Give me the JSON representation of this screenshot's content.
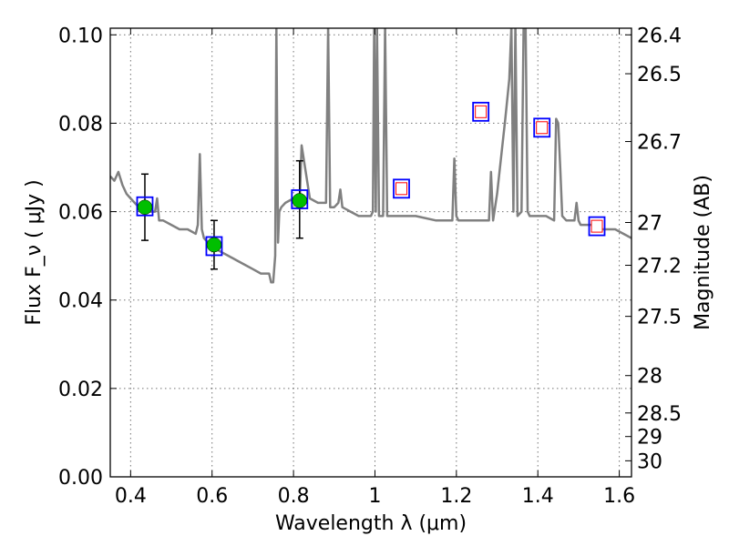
{
  "chart_data": {
    "type": "scatter",
    "xlabel": "Wavelength  λ (μm)",
    "ylabel": "Flux  F_ν  ( μJy )",
    "y2label": "Magnitude (AB)",
    "xlim": [
      0.35,
      1.63
    ],
    "ylim": [
      0.0,
      0.1015
    ],
    "grid": true,
    "x_ticks": [
      0.4,
      0.6,
      0.8,
      1.0,
      1.2,
      1.4,
      1.6
    ],
    "x_tick_labels": [
      "0.4",
      "0.6",
      "0.8",
      "1",
      "1.2",
      "1.4",
      "1.6"
    ],
    "y_ticks": [
      0.0,
      0.02,
      0.04,
      0.06,
      0.08,
      0.1
    ],
    "y_tick_labels": [
      "0.00",
      "0.02",
      "0.04",
      "0.06",
      "0.08",
      "0.10"
    ],
    "y2_ticks": [
      26.4,
      26.5,
      26.7,
      27,
      27.2,
      27.5,
      28,
      28.5,
      29,
      30
    ],
    "y2_tick_labels": [
      "26.4",
      "26.5",
      "26.7",
      "27",
      "27.2",
      "27.5",
      "28",
      "28.5",
      "29",
      "30"
    ],
    "series": [
      {
        "type": "line",
        "color": "#808080",
        "x": [
          0.35,
          0.36,
          0.37,
          0.38,
          0.39,
          0.4,
          0.41,
          0.42,
          0.43,
          0.44,
          0.45,
          0.46,
          0.465,
          0.47,
          0.48,
          0.5,
          0.52,
          0.54,
          0.56,
          0.565,
          0.57,
          0.575,
          0.58,
          0.6,
          0.62,
          0.64,
          0.66,
          0.68,
          0.7,
          0.72,
          0.74,
          0.745,
          0.75,
          0.755,
          0.758,
          0.762,
          0.765,
          0.77,
          0.78,
          0.8,
          0.815,
          0.82,
          0.84,
          0.86,
          0.88,
          0.885,
          0.89,
          0.9,
          0.91,
          0.915,
          0.92,
          0.94,
          0.96,
          0.98,
          0.99,
          0.995,
          0.998,
          1.002,
          1.005,
          1.01,
          1.02,
          1.025,
          1.03,
          1.06,
          1.1,
          1.15,
          1.19,
          1.195,
          1.2,
          1.205,
          1.22,
          1.26,
          1.28,
          1.285,
          1.29,
          1.3,
          1.32,
          1.33,
          1.335,
          1.34,
          1.345,
          1.35,
          1.36,
          1.365,
          1.37,
          1.375,
          1.38,
          1.4,
          1.42,
          1.44,
          1.445,
          1.45,
          1.455,
          1.46,
          1.47,
          1.48,
          1.49,
          1.495,
          1.5,
          1.505,
          1.51,
          1.53,
          1.56,
          1.59,
          1.61,
          1.63
        ],
        "y": [
          0.068,
          0.067,
          0.069,
          0.066,
          0.064,
          0.063,
          0.062,
          0.061,
          0.061,
          0.06,
          0.06,
          0.06,
          0.063,
          0.058,
          0.058,
          0.057,
          0.056,
          0.056,
          0.055,
          0.057,
          0.073,
          0.056,
          0.054,
          0.052,
          0.051,
          0.05,
          0.049,
          0.048,
          0.047,
          0.046,
          0.046,
          0.044,
          0.044,
          0.05,
          0.102,
          0.053,
          0.06,
          0.061,
          0.062,
          0.063,
          0.062,
          0.075,
          0.063,
          0.062,
          0.062,
          0.102,
          0.061,
          0.061,
          0.062,
          0.065,
          0.061,
          0.06,
          0.059,
          0.059,
          0.059,
          0.06,
          0.102,
          0.06,
          0.102,
          0.059,
          0.059,
          0.102,
          0.059,
          0.059,
          0.059,
          0.058,
          0.058,
          0.072,
          0.059,
          0.058,
          0.058,
          0.058,
          0.058,
          0.069,
          0.058,
          0.064,
          0.081,
          0.09,
          0.102,
          0.06,
          0.102,
          0.059,
          0.06,
          0.102,
          0.102,
          0.06,
          0.059,
          0.059,
          0.059,
          0.058,
          0.081,
          0.08,
          0.07,
          0.059,
          0.058,
          0.058,
          0.058,
          0.062,
          0.058,
          0.057,
          0.057,
          0.057,
          0.056,
          0.056,
          0.055,
          0.054
        ]
      },
      {
        "type": "observed",
        "marker": "green-circle",
        "color": "#00bf00",
        "x": [
          0.435,
          0.605,
          0.815
        ],
        "y": [
          0.061,
          0.0525,
          0.0625
        ],
        "yerr_low": [
          0.0535,
          0.047,
          0.054
        ],
        "yerr_high": [
          0.0685,
          0.058,
          0.0715
        ]
      },
      {
        "type": "model",
        "marker": "blue-square",
        "color": "#0000ff",
        "x": [
          0.435,
          0.605,
          0.815,
          1.065,
          1.26,
          1.41,
          1.545
        ],
        "y": [
          0.0612,
          0.0522,
          0.0628,
          0.0652,
          0.0826,
          0.079,
          0.0567
        ]
      },
      {
        "type": "upper-limit",
        "marker": "red-open-square",
        "color": "#ff0000",
        "x": [
          1.065,
          1.26,
          1.41,
          1.545
        ],
        "y": [
          0.0652,
          0.0826,
          0.079,
          0.0567
        ]
      }
    ]
  }
}
